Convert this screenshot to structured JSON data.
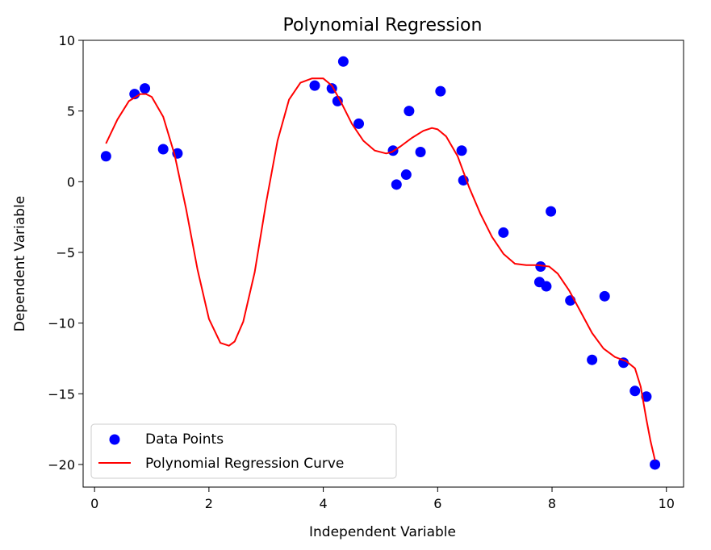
{
  "chart_data": {
    "type": "scatter",
    "title": "Polynomial Regression",
    "xlabel": "Independent Variable",
    "ylabel": "Dependent Variable",
    "xlim": [
      -0.2,
      10.3
    ],
    "ylim": [
      -21.6,
      10.0
    ],
    "xticks": [
      0,
      2,
      4,
      6,
      8,
      10
    ],
    "xtick_labels": [
      "0",
      "2",
      "4",
      "6",
      "8",
      "10"
    ],
    "yticks": [
      10,
      5,
      0,
      -5,
      -10,
      -15,
      -20
    ],
    "ytick_labels": [
      "10",
      "5",
      "0",
      "−5",
      "−10",
      "−15",
      "−20"
    ],
    "grid": false,
    "legend": {
      "position": "lower-left",
      "entries": [
        "Data Points",
        "Polynomial Regression Curve"
      ]
    },
    "colors": {
      "points": "#0000ff",
      "curve": "#ff0000"
    },
    "series": [
      {
        "name": "Data Points",
        "kind": "scatter",
        "x": [
          0.2,
          0.7,
          0.88,
          1.2,
          1.45,
          3.85,
          4.15,
          4.25,
          4.35,
          4.62,
          5.22,
          5.28,
          5.45,
          5.5,
          5.7,
          6.05,
          6.42,
          6.45,
          7.15,
          7.78,
          7.8,
          7.9,
          7.98,
          8.32,
          8.7,
          8.92,
          9.25,
          9.45,
          9.65,
          9.8
        ],
        "y": [
          1.8,
          6.2,
          6.6,
          2.3,
          2.0,
          6.8,
          6.6,
          5.7,
          8.5,
          4.1,
          2.2,
          -0.2,
          0.5,
          5.0,
          2.1,
          6.4,
          2.2,
          0.1,
          -3.6,
          -7.1,
          -6.0,
          -7.4,
          -2.1,
          -8.4,
          -12.6,
          -8.1,
          -12.8,
          -14.8,
          -15.2,
          -20.0
        ]
      },
      {
        "name": "Polynomial Regression Curve",
        "kind": "line",
        "x": [
          0.2,
          0.4,
          0.6,
          0.8,
          0.9,
          1.0,
          1.2,
          1.4,
          1.6,
          1.8,
          2.0,
          2.2,
          2.35,
          2.45,
          2.6,
          2.8,
          3.0,
          3.2,
          3.4,
          3.6,
          3.8,
          4.0,
          4.15,
          4.3,
          4.5,
          4.7,
          4.9,
          5.1,
          5.2,
          5.35,
          5.55,
          5.75,
          5.9,
          6.0,
          6.15,
          6.35,
          6.55,
          6.75,
          6.95,
          7.15,
          7.35,
          7.55,
          7.75,
          7.95,
          8.1,
          8.3,
          8.5,
          8.7,
          8.9,
          9.1,
          9.3,
          9.45,
          9.55,
          9.65,
          9.72,
          9.8
        ],
        "y": [
          2.7,
          4.4,
          5.7,
          6.2,
          6.2,
          6.0,
          4.6,
          1.9,
          -1.9,
          -6.2,
          -9.7,
          -11.4,
          -11.6,
          -11.3,
          -9.9,
          -6.4,
          -1.5,
          2.9,
          5.8,
          7.0,
          7.3,
          7.3,
          6.8,
          5.7,
          4.1,
          2.9,
          2.2,
          2.0,
          2.1,
          2.5,
          3.1,
          3.6,
          3.8,
          3.7,
          3.2,
          1.8,
          -0.4,
          -2.3,
          -3.9,
          -5.1,
          -5.8,
          -5.9,
          -5.9,
          -6.0,
          -6.5,
          -7.7,
          -9.2,
          -10.7,
          -11.8,
          -12.4,
          -12.7,
          -13.2,
          -14.5,
          -16.8,
          -18.3,
          -19.7
        ]
      }
    ]
  }
}
